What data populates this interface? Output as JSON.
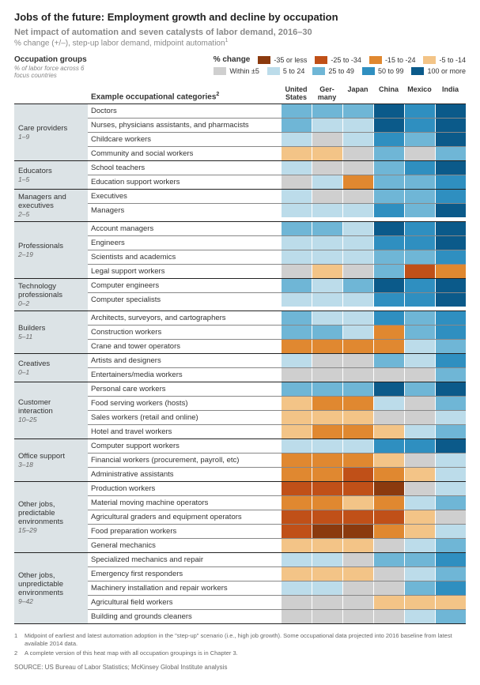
{
  "title": "Jobs of the future: Employment growth and decline by occupation",
  "subtitle": "Net impact of automation and seven catalysts of labor demand, 2016–30",
  "subtitle2": "% change (+/–), step-up labor demand, midpoint automation",
  "subtitle2_sup": "1",
  "occ_header": {
    "label": "Occupation groups",
    "sub": "% of labor force across 6 focus countries"
  },
  "legend": {
    "label": "% change",
    "items": [
      {
        "color": "#8b3a0e",
        "label": "-35 or less"
      },
      {
        "color": "#c05018",
        "label": "-25 to -34"
      },
      {
        "color": "#e08830",
        "label": "-15 to -24"
      },
      {
        "color": "#f3c487",
        "label": "-5 to -14"
      },
      {
        "color": "#cfcfcf",
        "label": "Within ±5"
      },
      {
        "color": "#bcdcea",
        "label": "5 to 24"
      },
      {
        "color": "#6fb6d6",
        "label": "25 to 49"
      },
      {
        "color": "#2f8fc0",
        "label": "50 to 99"
      },
      {
        "color": "#0b5a8a",
        "label": "100 or more"
      }
    ]
  },
  "colors": {
    "A": "#8b3a0e",
    "B": "#c05018",
    "C": "#e08830",
    "D": "#f3c487",
    "E": "#cfcfcf",
    "F": "#bcdcea",
    "G": "#6fb6d6",
    "H": "#2f8fc0",
    "I": "#0b5a8a"
  },
  "columns_header_left": "Example occupational categories",
  "columns_header_sup": "2",
  "countries": [
    "United States",
    "Germany",
    "Japan",
    "China",
    "Mexico",
    "India"
  ],
  "groups": [
    {
      "name": "Care providers",
      "range": "1–9",
      "rows": [
        {
          "label": "Doctors",
          "cells": [
            "G",
            "G",
            "G",
            "I",
            "H",
            "I"
          ]
        },
        {
          "label": "Nurses, physicians assistants, and pharmacists",
          "cells": [
            "G",
            "F",
            "F",
            "I",
            "H",
            "I"
          ]
        },
        {
          "label": "Childcare workers",
          "cells": [
            "F",
            "E",
            "F",
            "H",
            "G",
            "I"
          ]
        },
        {
          "label": "Community and social workers",
          "cells": [
            "D",
            "D",
            "E",
            "G",
            "E",
            "G"
          ]
        }
      ]
    },
    {
      "name": "Educators",
      "range": "1–5",
      "rows": [
        {
          "label": "School teachers",
          "cells": [
            "F",
            "E",
            "E",
            "G",
            "H",
            "I"
          ]
        },
        {
          "label": "Education support workers",
          "cells": [
            "E",
            "F",
            "C",
            "G",
            "G",
            "H"
          ]
        }
      ]
    },
    {
      "name": "Managers and executives",
      "range": "2–5",
      "rows": [
        {
          "label": "Executives",
          "cells": [
            "F",
            "E",
            "E",
            "G",
            "G",
            "H"
          ]
        },
        {
          "label": "Managers",
          "cells": [
            "F",
            "F",
            "F",
            "H",
            "G",
            "I"
          ]
        }
      ]
    },
    {
      "name": "Professionals",
      "range": "2–19",
      "rows": [
        {
          "label": "Account managers",
          "cells": [
            "G",
            "G",
            "F",
            "I",
            "H",
            "I"
          ]
        },
        {
          "label": "Engineers",
          "cells": [
            "F",
            "F",
            "F",
            "H",
            "H",
            "I"
          ]
        },
        {
          "label": "Scientists and academics",
          "cells": [
            "F",
            "F",
            "F",
            "G",
            "G",
            "H"
          ]
        },
        {
          "label": "Legal support workers",
          "cells": [
            "E",
            "D",
            "E",
            "G",
            "B",
            "C"
          ]
        }
      ]
    },
    {
      "name": "Technology professionals",
      "range": "0–2",
      "rows": [
        {
          "label": "Computer engineers",
          "cells": [
            "G",
            "F",
            "G",
            "I",
            "H",
            "I"
          ]
        },
        {
          "label": "Computer specialists",
          "cells": [
            "F",
            "F",
            "F",
            "H",
            "H",
            "I"
          ]
        }
      ]
    },
    {
      "name": "Builders",
      "range": "5–11",
      "rows": [
        {
          "label": "Architects, surveyors, and cartographers",
          "cells": [
            "G",
            "F",
            "F",
            "H",
            "G",
            "H"
          ]
        },
        {
          "label": "Construction workers",
          "cells": [
            "G",
            "G",
            "F",
            "C",
            "G",
            "H"
          ]
        },
        {
          "label": "Crane and tower operators",
          "cells": [
            "C",
            "C",
            "C",
            "C",
            "F",
            "G"
          ]
        }
      ]
    },
    {
      "name": "Creatives",
      "range": "0–1",
      "rows": [
        {
          "label": "Artists and designers",
          "cells": [
            "F",
            "E",
            "E",
            "G",
            "F",
            "H"
          ]
        },
        {
          "label": "Entertainers/media workers",
          "cells": [
            "E",
            "E",
            "E",
            "E",
            "E",
            "G"
          ]
        }
      ]
    },
    {
      "name": "Customer interaction",
      "range": "10–25",
      "rows": [
        {
          "label": "Personal care workers",
          "cells": [
            "G",
            "G",
            "G",
            "I",
            "G",
            "I"
          ]
        },
        {
          "label": "Food serving workers (hosts)",
          "cells": [
            "D",
            "C",
            "C",
            "F",
            "E",
            "G"
          ]
        },
        {
          "label": "Sales workers (retail and online)",
          "cells": [
            "D",
            "D",
            "D",
            "E",
            "E",
            "F"
          ]
        },
        {
          "label": "Hotel and travel workers",
          "cells": [
            "D",
            "C",
            "C",
            "D",
            "F",
            "G"
          ]
        }
      ]
    },
    {
      "name": "Office support",
      "range": "3–18",
      "rows": [
        {
          "label": "Computer support workers",
          "cells": [
            "F",
            "F",
            "F",
            "H",
            "H",
            "I"
          ]
        },
        {
          "label": "Financial workers (procurement, payroll, etc)",
          "cells": [
            "C",
            "C",
            "C",
            "D",
            "E",
            "F"
          ]
        },
        {
          "label": "Administrative assistants",
          "cells": [
            "C",
            "C",
            "B",
            "C",
            "D",
            "F"
          ]
        }
      ]
    },
    {
      "name": "Other jobs, predictable environments",
      "range": "15–29",
      "rows": [
        {
          "label": "Production workers",
          "cells": [
            "B",
            "B",
            "B",
            "A",
            "E",
            "F"
          ]
        },
        {
          "label": "Material moving machine operators",
          "cells": [
            "C",
            "C",
            "D",
            "C",
            "F",
            "G"
          ]
        },
        {
          "label": "Agricultural graders and equipment operators",
          "cells": [
            "B",
            "B",
            "B",
            "B",
            "D",
            "E"
          ]
        },
        {
          "label": "Food preparation workers",
          "cells": [
            "B",
            "A",
            "A",
            "C",
            "D",
            "F"
          ]
        },
        {
          "label": "General mechanics",
          "cells": [
            "D",
            "D",
            "D",
            "E",
            "F",
            "G"
          ]
        }
      ]
    },
    {
      "name": "Other jobs, unpredictable environments",
      "range": "9–42",
      "rows": [
        {
          "label": "Specialized mechanics and repair",
          "cells": [
            "F",
            "F",
            "E",
            "G",
            "G",
            "H"
          ]
        },
        {
          "label": "Emergency first responders",
          "cells": [
            "D",
            "D",
            "D",
            "E",
            "F",
            "G"
          ]
        },
        {
          "label": "Machinery installation and repair workers",
          "cells": [
            "F",
            "F",
            "E",
            "E",
            "G",
            "H"
          ]
        },
        {
          "label": "Agricultural field workers",
          "cells": [
            "E",
            "E",
            "E",
            "D",
            "D",
            "D"
          ]
        },
        {
          "label": "Building and grounds cleaners",
          "cells": [
            "E",
            "E",
            "E",
            "E",
            "F",
            "G"
          ]
        }
      ]
    }
  ],
  "footnotes": [
    {
      "num": "1",
      "text": "Midpoint of earliest and latest automation adoption in the \"step-up\" scenario (i.e., high job growth). Some occupational data projected into 2016 baseline from latest available 2014 data."
    },
    {
      "num": "2",
      "text": "A complete version of this heat map with all occupation groupings is in Chapter 3."
    }
  ],
  "source": "SOURCE:  US Bureau of Labor Statistics; McKinsey Global Institute analysis"
}
